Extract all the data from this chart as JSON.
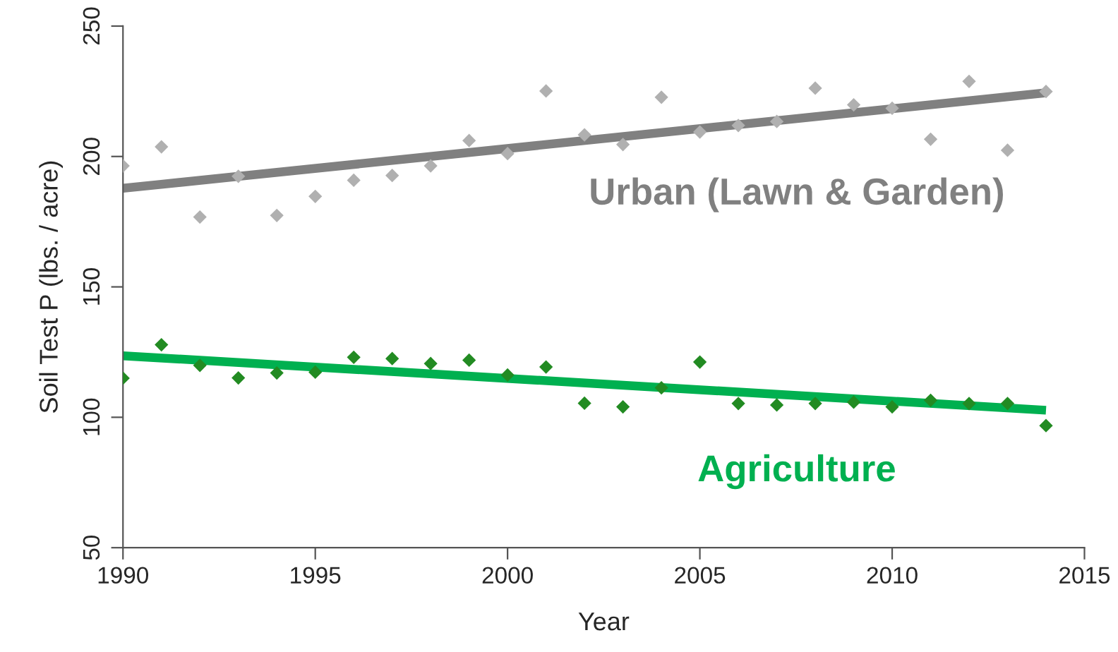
{
  "chart_data": {
    "type": "scatter",
    "xlabel": "Year",
    "ylabel": "Soil Test P (lbs. / acre)",
    "xlim": [
      1990,
      2015
    ],
    "xticks": [
      1990,
      1995,
      2000,
      2005,
      2010,
      2015
    ],
    "ylim": [
      50,
      250
    ],
    "yticks": [
      50,
      100,
      150,
      200,
      250
    ],
    "grid": false,
    "legend": false,
    "series": [
      {
        "color": "#b0b0b0",
        "marker": "diamond",
        "x": [
          1990,
          1991,
          1992,
          1993,
          1994,
          1995,
          1996,
          1997,
          1998,
          1999,
          2000,
          2001,
          2002,
          2003,
          2004,
          2005,
          2006,
          2007,
          2008,
          2009,
          2010,
          2011,
          2012,
          2013,
          2014
        ],
        "values": [
          196.4,
          203.7,
          176.8,
          192.4,
          177.4,
          184.7,
          190.9,
          192.7,
          196.4,
          206.1,
          201.1,
          225.1,
          208.3,
          204.6,
          222.7,
          209.4,
          211.9,
          213.4,
          226.2,
          219.8,
          218.5,
          206.6,
          228.8,
          202.4,
          224.9
        ]
      },
      {
        "type": "line",
        "name": "Urban (Lawn & Garden)",
        "color": "#808080",
        "marker": "none",
        "x": [
          1990,
          2014
        ],
        "values": [
          187.8,
          224.4
        ]
      },
      {
        "color": "#228b22",
        "marker": "diamond",
        "x": [
          1990,
          1991,
          1992,
          1993,
          1994,
          1995,
          1996,
          1997,
          1998,
          1999,
          2000,
          2001,
          2002,
          2003,
          2004,
          2005,
          2006,
          2007,
          2008,
          2009,
          2010,
          2011,
          2012,
          2013,
          2014
        ],
        "values": [
          115.0,
          127.8,
          119.9,
          115.1,
          117.0,
          117.3,
          123.0,
          122.5,
          120.6,
          121.9,
          116.2,
          119.3,
          105.4,
          104.0,
          111.3,
          121.2,
          105.3,
          104.7,
          105.3,
          105.8,
          104.0,
          106.5,
          105.3,
          105.3,
          96.8
        ]
      },
      {
        "type": "line",
        "name": "Agriculture",
        "color": "#00b050",
        "marker": "none",
        "x": [
          1990,
          2014
        ],
        "values": [
          123.6,
          102.7
        ]
      }
    ]
  }
}
